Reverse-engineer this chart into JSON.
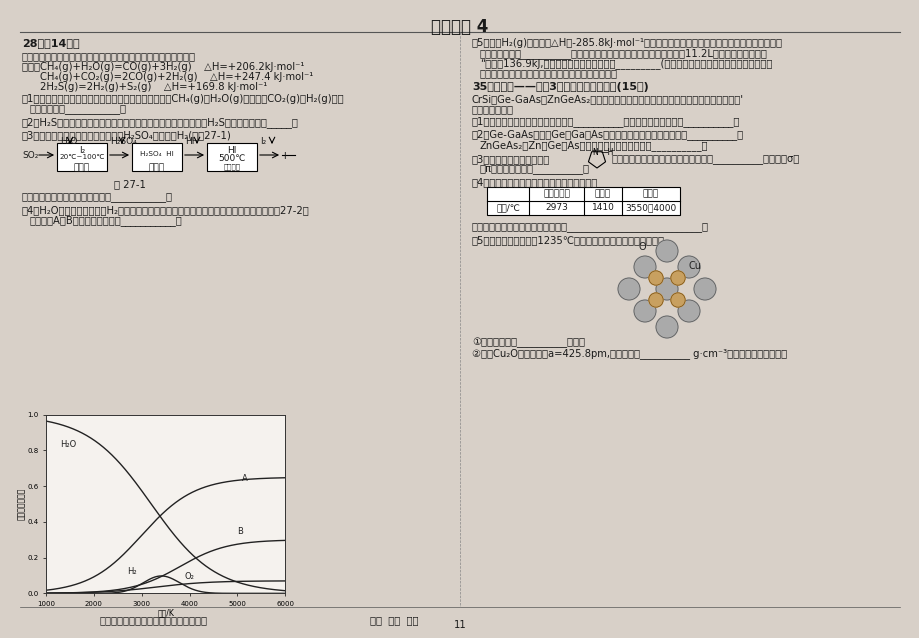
{
  "title": "初试锋芒 4",
  "bg_color": "#d8d0c8",
  "text_color": "#1a1a1a",
  "page_number": "11",
  "table_headers": [
    "",
    "立方碳化硅",
    "晶体硅",
    "金刚石"
  ],
  "table_row": [
    "熔点/℃",
    "2973",
    "1410",
    "3550～4000"
  ],
  "graph_xlabel": "温度/K",
  "graph_ylabel": "气体的体积分数"
}
